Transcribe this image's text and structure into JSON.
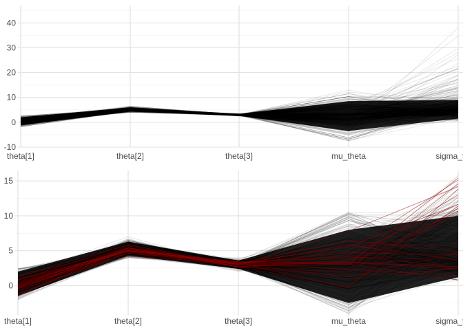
{
  "chart_data": [
    {
      "type": "line",
      "subtype": "parallel-coordinates",
      "title": "",
      "xlabel": "",
      "ylabel": "",
      "categories": [
        "theta[1]",
        "theta[2]",
        "theta[3]",
        "mu_theta",
        "sigma_theta"
      ],
      "ylim": [
        -10,
        47
      ],
      "yticks": [
        -10,
        0,
        10,
        20,
        30,
        40
      ],
      "grid": true,
      "line_color": "#000000",
      "profiles": {
        "median": [
          0.3,
          5.0,
          3.0,
          2.5,
          5.0
        ],
        "lower": [
          -1.8,
          4.0,
          2.3,
          -7.5,
          0.5
        ],
        "upper": [
          2.6,
          6.5,
          3.7,
          13.0,
          45.0
        ],
        "band_lower": [
          -1.2,
          4.3,
          2.6,
          -3.5,
          1.5
        ],
        "band_upper": [
          2.0,
          6.0,
          3.4,
          8.5,
          9.0
        ]
      }
    },
    {
      "type": "line",
      "subtype": "parallel-coordinates",
      "title": "",
      "xlabel": "",
      "ylabel": "",
      "categories": [
        "theta[1]",
        "theta[2]",
        "theta[3]",
        "mu_theta",
        "sigma_theta"
      ],
      "ylim": [
        -4.3,
        16.5
      ],
      "yticks": [
        0,
        5,
        10,
        15
      ],
      "grid": true,
      "line_color": "#000000",
      "highlight_color": "#8b0000",
      "highlight_series_count": 25,
      "profiles": {
        "median": [
          0.2,
          5.2,
          3.0,
          2.8,
          4.0
        ],
        "lower": [
          -2.0,
          4.0,
          2.0,
          -4.0,
          0.8
        ],
        "upper": [
          2.4,
          7.0,
          4.0,
          10.5,
          15.8
        ],
        "band_lower": [
          -1.5,
          4.3,
          2.4,
          -2.5,
          1.2
        ],
        "band_upper": [
          2.0,
          6.3,
          3.6,
          8.0,
          10.0
        ]
      }
    }
  ]
}
